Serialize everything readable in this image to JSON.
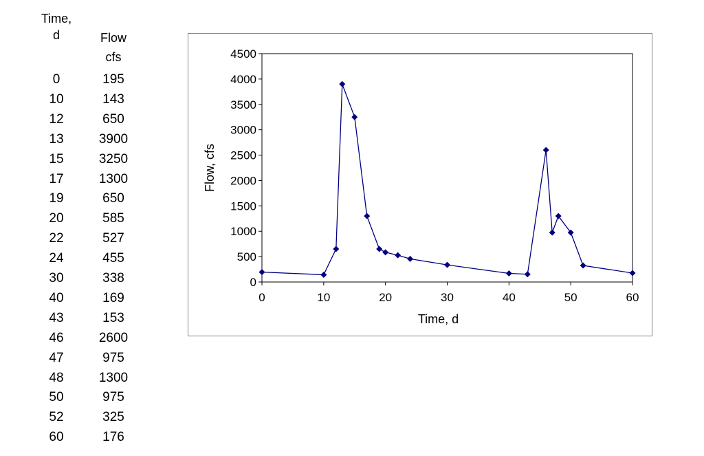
{
  "table": {
    "col_time_header": [
      "Time,",
      "d"
    ],
    "col_flow_header": [
      "Flow",
      "cfs"
    ],
    "rows": [
      {
        "time": "0",
        "flow": "195"
      },
      {
        "time": "10",
        "flow": "143"
      },
      {
        "time": "12",
        "flow": "650"
      },
      {
        "time": "13",
        "flow": "3900"
      },
      {
        "time": "15",
        "flow": "3250"
      },
      {
        "time": "17",
        "flow": "1300"
      },
      {
        "time": "19",
        "flow": "650"
      },
      {
        "time": "20",
        "flow": "585"
      },
      {
        "time": "22",
        "flow": "527"
      },
      {
        "time": "24",
        "flow": "455"
      },
      {
        "time": "30",
        "flow": "338"
      },
      {
        "time": "40",
        "flow": "169"
      },
      {
        "time": "43",
        "flow": "153"
      },
      {
        "time": "46",
        "flow": "2600"
      },
      {
        "time": "47",
        "flow": "975"
      },
      {
        "time": "48",
        "flow": "1300"
      },
      {
        "time": "50",
        "flow": "975"
      },
      {
        "time": "52",
        "flow": "325"
      },
      {
        "time": "60",
        "flow": "176"
      }
    ]
  },
  "chart_data": {
    "type": "line",
    "title": "",
    "xlabel": "Time, d",
    "ylabel": "Flow, cfs",
    "xlim": [
      0,
      60
    ],
    "ylim": [
      0,
      4500
    ],
    "xticks": [
      0,
      10,
      20,
      30,
      40,
      50,
      60
    ],
    "yticks": [
      0,
      500,
      1000,
      1500,
      2000,
      2500,
      3000,
      3500,
      4000,
      4500
    ],
    "grid": false,
    "legend": "none",
    "series": [
      {
        "color": "#000080",
        "marker": "diamond",
        "x": [
          0,
          10,
          12,
          13,
          15,
          17,
          19,
          20,
          22,
          24,
          30,
          40,
          43,
          46,
          47,
          48,
          50,
          52,
          60
        ],
        "y": [
          195,
          143,
          650,
          3900,
          3250,
          1300,
          650,
          585,
          527,
          455,
          338,
          169,
          153,
          2600,
          975,
          1300,
          975,
          325,
          176
        ]
      }
    ]
  }
}
